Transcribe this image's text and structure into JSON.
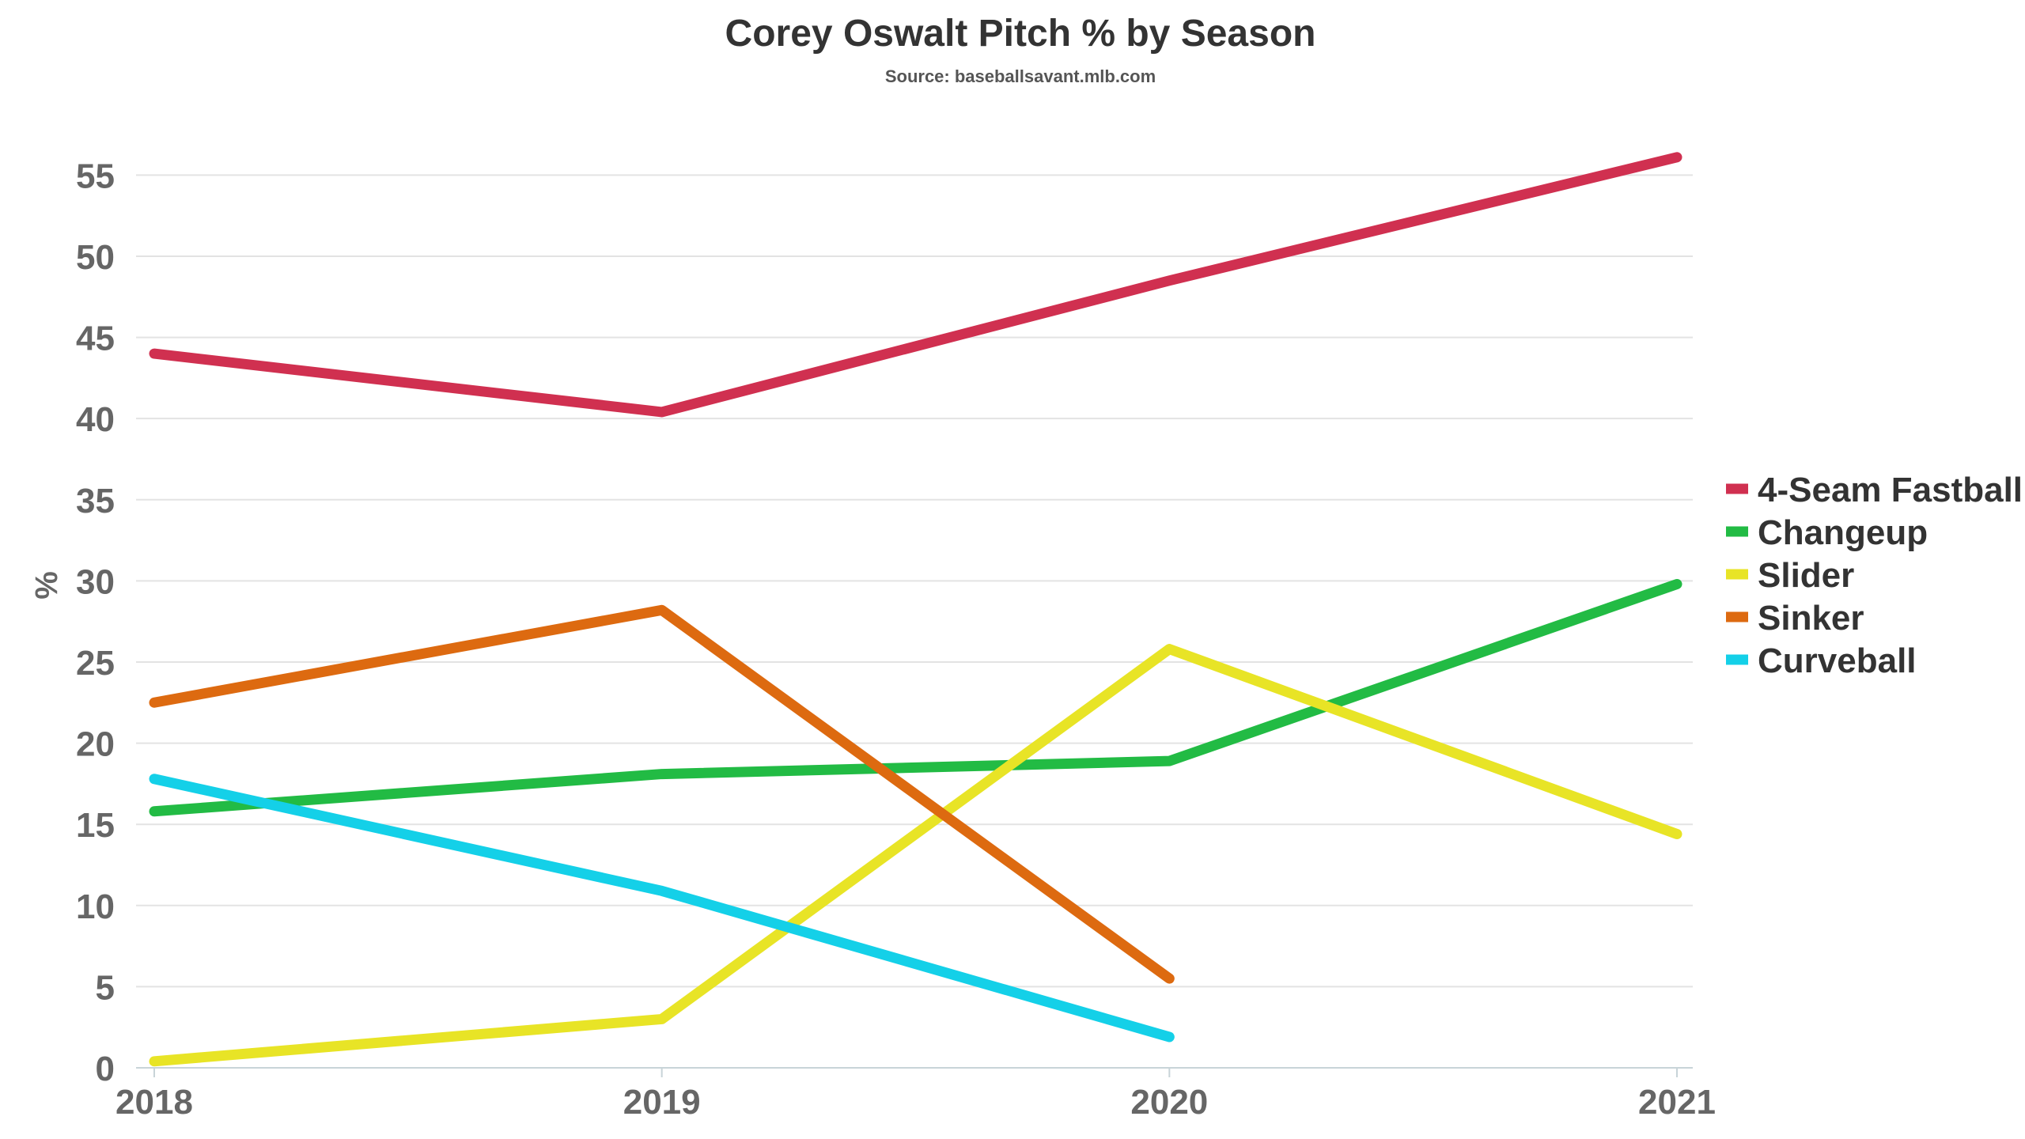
{
  "chart_data": {
    "type": "line",
    "title": "Corey Oswalt Pitch % by Season",
    "subtitle": "Source: baseballsavant.mlb.com",
    "xlabel": "",
    "ylabel": "%",
    "x": [
      "2018",
      "2019",
      "2020",
      "2021"
    ],
    "yticks": [
      "0",
      "5",
      "10",
      "15",
      "20",
      "25",
      "30",
      "35",
      "40",
      "45",
      "50",
      "55"
    ],
    "ylim": [
      0,
      55
    ],
    "grid": true,
    "legend_position": "right",
    "series": [
      {
        "name": "4-Seam Fastball",
        "color": "#d03050",
        "values": [
          44.0,
          40.4,
          48.5,
          56.1
        ]
      },
      {
        "name": "Changeup",
        "color": "#22bb44",
        "values": [
          15.8,
          18.1,
          18.9,
          29.8
        ]
      },
      {
        "name": "Slider",
        "color": "#e8e426",
        "values": [
          0.4,
          3.0,
          25.8,
          14.4
        ]
      },
      {
        "name": "Sinker",
        "color": "#dd6a10",
        "values": [
          22.5,
          28.2,
          5.5,
          null
        ]
      },
      {
        "name": "Curveball",
        "color": "#14d0e8",
        "values": [
          17.8,
          10.9,
          1.9,
          null
        ]
      }
    ]
  }
}
